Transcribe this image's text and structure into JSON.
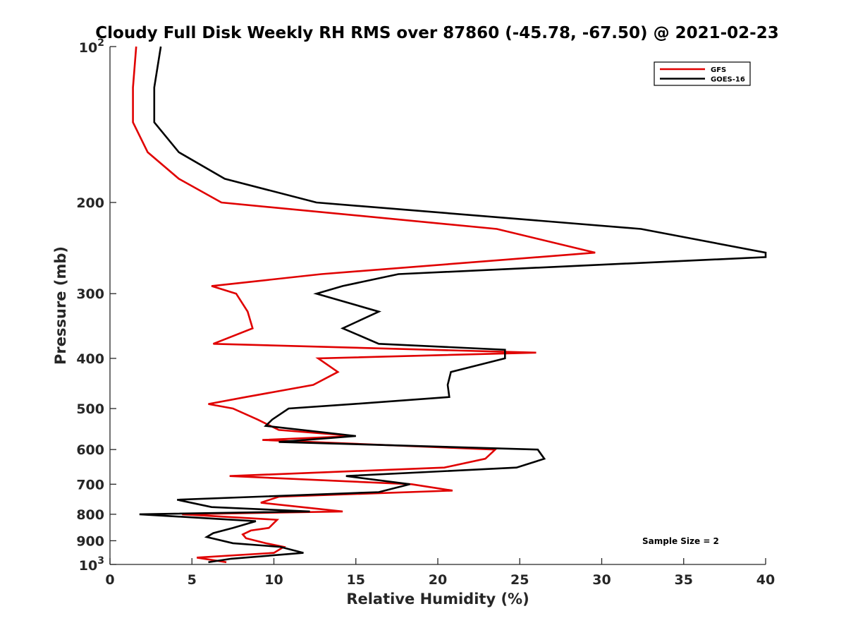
{
  "chart_data": {
    "type": "line",
    "title": "Cloudy Full Disk Weekly RH RMS over 87860 (-45.78, -67.50) @ 2021-02-23",
    "xlabel": "Relative Humidity (%)",
    "ylabel": "Pressure (mb)",
    "xlim": [
      0,
      40
    ],
    "ylim": [
      100,
      1000
    ],
    "y_scale": "log",
    "y_reversed": true,
    "grid": false,
    "legend_position": "top-right",
    "x_ticks": [
      0,
      5,
      10,
      15,
      20,
      25,
      30,
      35,
      40
    ],
    "y_ticks": [
      {
        "value": 100,
        "base": "10",
        "exp": "2"
      },
      {
        "value": 200,
        "label": "200"
      },
      {
        "value": 300,
        "label": "300"
      },
      {
        "value": 400,
        "label": "400"
      },
      {
        "value": 500,
        "label": "500"
      },
      {
        "value": 600,
        "label": "600"
      },
      {
        "value": 700,
        "label": "700"
      },
      {
        "value": 800,
        "label": "800"
      },
      {
        "value": 900,
        "label": "900"
      },
      {
        "value": 1000,
        "base": "10",
        "exp": "3"
      }
    ],
    "annotation": "Sample Size = 2",
    "series": [
      {
        "name": "GFS",
        "color": "#e00000",
        "points": [
          [
            1.6,
            100
          ],
          [
            1.4,
            120
          ],
          [
            1.4,
            140
          ],
          [
            2.3,
            160
          ],
          [
            4.2,
            180
          ],
          [
            6.8,
            200
          ],
          [
            23.6,
            225
          ],
          [
            29.6,
            250
          ],
          [
            12.9,
            275
          ],
          [
            6.2,
            290
          ],
          [
            7.7,
            300
          ],
          [
            8.4,
            325
          ],
          [
            8.7,
            350
          ],
          [
            6.3,
            375
          ],
          [
            26.0,
            390
          ],
          [
            12.7,
            400
          ],
          [
            13.9,
            425
          ],
          [
            12.4,
            450
          ],
          [
            8.3,
            475
          ],
          [
            6.0,
            490
          ],
          [
            7.5,
            500
          ],
          [
            9.0,
            525
          ],
          [
            10.3,
            550
          ],
          [
            14.9,
            565
          ],
          [
            9.3,
            575
          ],
          [
            23.5,
            600
          ],
          [
            22.9,
            625
          ],
          [
            20.4,
            650
          ],
          [
            7.3,
            675
          ],
          [
            18.4,
            700
          ],
          [
            20.9,
            720
          ],
          [
            10.3,
            740
          ],
          [
            9.2,
            760
          ],
          [
            14.2,
            790
          ],
          [
            4.4,
            800
          ],
          [
            10.2,
            820
          ],
          [
            9.7,
            850
          ],
          [
            8.6,
            860
          ],
          [
            8.1,
            875
          ],
          [
            8.3,
            890
          ],
          [
            9.5,
            910
          ],
          [
            10.6,
            925
          ],
          [
            10.0,
            950
          ],
          [
            5.3,
            970
          ],
          [
            7.1,
            990
          ]
        ]
      },
      {
        "name": "GOES-16",
        "color": "#000000",
        "points": [
          [
            3.1,
            100
          ],
          [
            2.7,
            120
          ],
          [
            2.7,
            140
          ],
          [
            4.2,
            160
          ],
          [
            7.0,
            180
          ],
          [
            12.6,
            200
          ],
          [
            32.4,
            225
          ],
          [
            40.0,
            250
          ],
          [
            40.0,
            255
          ],
          [
            17.6,
            275
          ],
          [
            14.2,
            290
          ],
          [
            12.6,
            300
          ],
          [
            16.4,
            325
          ],
          [
            14.2,
            350
          ],
          [
            16.4,
            375
          ],
          [
            24.1,
            385
          ],
          [
            24.1,
            400
          ],
          [
            20.8,
            425
          ],
          [
            20.6,
            450
          ],
          [
            20.7,
            475
          ],
          [
            14.9,
            490
          ],
          [
            10.9,
            500
          ],
          [
            9.9,
            525
          ],
          [
            9.5,
            540
          ],
          [
            15.0,
            565
          ],
          [
            10.3,
            580
          ],
          [
            26.1,
            600
          ],
          [
            26.5,
            625
          ],
          [
            24.8,
            650
          ],
          [
            14.4,
            675
          ],
          [
            18.3,
            700
          ],
          [
            16.4,
            725
          ],
          [
            4.1,
            750
          ],
          [
            6.2,
            775
          ],
          [
            12.2,
            790
          ],
          [
            1.8,
            800
          ],
          [
            8.9,
            825
          ],
          [
            7.5,
            850
          ],
          [
            6.3,
            870
          ],
          [
            5.9,
            885
          ],
          [
            7.5,
            910
          ],
          [
            10.4,
            925
          ],
          [
            11.8,
            950
          ],
          [
            7.4,
            975
          ],
          [
            6.0,
            990
          ]
        ]
      }
    ]
  }
}
